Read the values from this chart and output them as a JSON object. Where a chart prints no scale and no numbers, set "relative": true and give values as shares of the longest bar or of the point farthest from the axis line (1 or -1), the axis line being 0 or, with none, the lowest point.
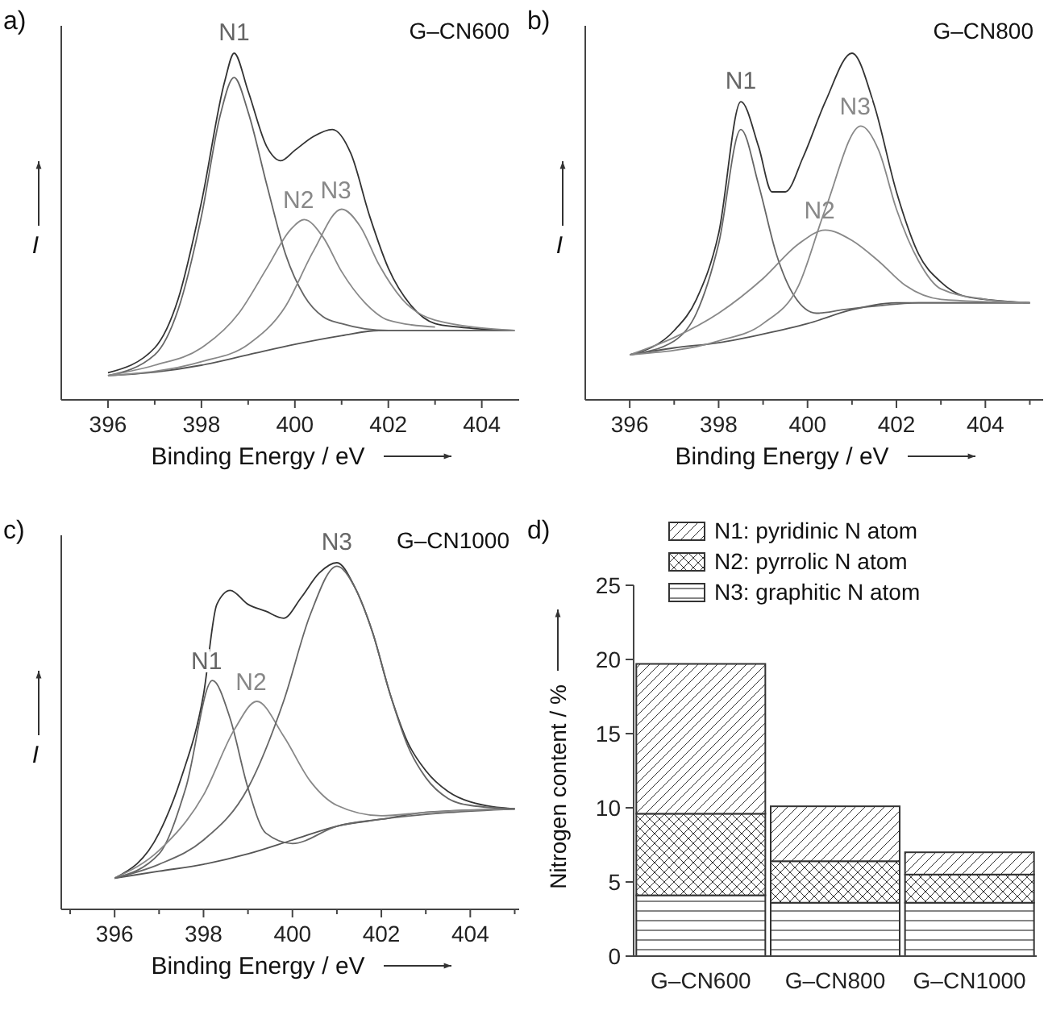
{
  "chart_data": [
    {
      "type": "line",
      "title": "a)",
      "annotations": [
        "G–CN600"
      ],
      "xlabel": "Binding Energy / eV",
      "ylabel": "I",
      "relative": true,
      "xlim": [
        395,
        404.8
      ],
      "xticks": [
        396,
        {
          "value": 397,
          "label": null
        },
        398,
        {
          "value": 399,
          "label": null
        },
        400,
        {
          "value": 401,
          "label": null
        },
        402,
        {
          "value": 403,
          "label": null
        },
        404
      ],
      "series": [
        {
          "color": "#555555",
          "x": [
            396,
            397,
            398,
            399,
            400,
            401,
            401.8,
            404.7
          ],
          "values": [
            0.07,
            0.08,
            0.1,
            0.13,
            0.16,
            0.185,
            0.2,
            0.2
          ]
        },
        {
          "color": "#333333",
          "x": [
            396,
            397,
            397.5,
            398,
            398.5,
            398.7,
            399,
            399.4,
            399.7,
            400,
            400.4,
            400.8,
            401.2,
            401.6,
            402,
            402.5,
            403,
            403.5,
            404.7
          ],
          "values": [
            0.078,
            0.15,
            0.29,
            0.57,
            0.92,
            1.0,
            0.89,
            0.73,
            0.69,
            0.72,
            0.76,
            0.78,
            0.71,
            0.53,
            0.38,
            0.27,
            0.22,
            0.21,
            0.2
          ]
        },
        {
          "name": "N1",
          "color": "#666666",
          "x": [
            396,
            397,
            397.5,
            398,
            398.4,
            398.7,
            399,
            399.4,
            399.8,
            400.2,
            400.6,
            401,
            401.5,
            402,
            404.7
          ],
          "values": [
            0.07,
            0.13,
            0.26,
            0.53,
            0.82,
            0.93,
            0.83,
            0.62,
            0.42,
            0.3,
            0.24,
            0.22,
            0.205,
            0.2,
            0.2
          ]
        },
        {
          "name": "N2",
          "color": "#888888",
          "x": [
            396,
            397,
            398,
            398.8,
            399.4,
            399.9,
            400.2,
            400.6,
            401,
            401.5,
            402,
            403
          ],
          "values": [
            0.07,
            0.1,
            0.15,
            0.25,
            0.38,
            0.49,
            0.52,
            0.47,
            0.37,
            0.28,
            0.23,
            0.21
          ]
        },
        {
          "name": "N3",
          "color": "#888888",
          "x": [
            396,
            398,
            399,
            399.8,
            400.4,
            401,
            401.4,
            401.8,
            402.3,
            403,
            404.7
          ],
          "values": [
            0.07,
            0.11,
            0.16,
            0.27,
            0.43,
            0.55,
            0.5,
            0.39,
            0.29,
            0.23,
            0.2
          ]
        }
      ]
    },
    {
      "type": "line",
      "title": "b)",
      "annotations": [
        "G–CN800"
      ],
      "xlabel": "Binding Energy / eV",
      "ylabel": "I",
      "relative": true,
      "xlim": [
        395,
        405.3
      ],
      "xticks": [
        396,
        {
          "value": 397,
          "label": null
        },
        398,
        {
          "value": 399,
          "label": null
        },
        400,
        {
          "value": 401,
          "label": null
        },
        402,
        {
          "value": 403,
          "label": null
        },
        404,
        {
          "value": 405,
          "label": null
        }
      ],
      "series": [
        {
          "color": "#555555",
          "x": [
            396,
            397,
            398,
            399,
            400,
            401,
            402,
            403,
            405
          ],
          "values": [
            0.13,
            0.15,
            0.165,
            0.19,
            0.22,
            0.26,
            0.28,
            0.28,
            0.28
          ]
        },
        {
          "color": "#333333",
          "x": [
            396,
            397,
            397.5,
            398,
            398.5,
            398.9,
            399.2,
            399.5,
            399.9,
            400.4,
            401,
            401.5,
            402,
            402.5,
            403,
            403.5,
            404,
            405
          ],
          "values": [
            0.13,
            0.2,
            0.29,
            0.48,
            0.86,
            0.73,
            0.6,
            0.6,
            0.7,
            0.86,
            1.0,
            0.85,
            0.6,
            0.42,
            0.34,
            0.3,
            0.29,
            0.28
          ]
        },
        {
          "name": "N1",
          "color": "#666666",
          "x": [
            396,
            397,
            397.5,
            398,
            398.5,
            398.9,
            399.3,
            399.7,
            400.2,
            400.8,
            401.5,
            402.5,
            405
          ],
          "values": [
            0.13,
            0.17,
            0.25,
            0.45,
            0.78,
            0.62,
            0.42,
            0.3,
            0.25,
            0.26,
            0.27,
            0.28,
            0.28
          ]
        },
        {
          "name": "N2",
          "color": "#888888",
          "x": [
            396,
            397,
            398,
            399,
            399.8,
            400.4,
            401,
            401.6,
            402.2,
            403,
            405
          ],
          "values": [
            0.13,
            0.18,
            0.25,
            0.35,
            0.45,
            0.49,
            0.46,
            0.4,
            0.33,
            0.29,
            0.28
          ]
        },
        {
          "name": "N3",
          "color": "#888888",
          "x": [
            396,
            398,
            399,
            399.8,
            400.4,
            401.2,
            401.6,
            402,
            402.5,
            403,
            404,
            405
          ],
          "values": [
            0.13,
            0.17,
            0.22,
            0.33,
            0.55,
            0.79,
            0.72,
            0.55,
            0.4,
            0.32,
            0.29,
            0.28
          ]
        }
      ]
    },
    {
      "type": "line",
      "title": "c)",
      "annotations": [
        "G–CN1000"
      ],
      "xlabel": "Binding Energy / eV",
      "ylabel": "I",
      "relative": true,
      "xlim": [
        394.8,
        405.1
      ],
      "xticks": [
        {
          "value": 395,
          "label": null
        },
        396,
        {
          "value": 397,
          "label": null
        },
        398,
        {
          "value": 399,
          "label": null
        },
        400,
        {
          "value": 401,
          "label": null
        },
        402,
        {
          "value": 403,
          "label": null
        },
        404,
        {
          "value": 405,
          "label": null
        }
      ],
      "series": [
        {
          "color": "#555555",
          "x": [
            396,
            397,
            398,
            399,
            400,
            401,
            402,
            403,
            405
          ],
          "values": [
            0.09,
            0.11,
            0.13,
            0.16,
            0.2,
            0.24,
            0.26,
            0.28,
            0.29
          ]
        },
        {
          "color": "#333333",
          "x": [
            396,
            397,
            397.5,
            398,
            398.3,
            398.6,
            399,
            399.4,
            399.8,
            400.2,
            400.6,
            401,
            401.4,
            401.8,
            402.2,
            402.6,
            403,
            403.5,
            404,
            405
          ],
          "values": [
            0.09,
            0.22,
            0.38,
            0.62,
            0.88,
            0.92,
            0.88,
            0.86,
            0.84,
            0.9,
            0.97,
            1.0,
            0.93,
            0.8,
            0.62,
            0.48,
            0.4,
            0.34,
            0.31,
            0.29
          ]
        },
        {
          "name": "N1",
          "color": "#666666",
          "x": [
            396,
            397,
            397.6,
            398.2,
            398.6,
            399,
            399.4,
            400,
            401,
            402,
            405
          ],
          "values": [
            0.09,
            0.16,
            0.35,
            0.66,
            0.55,
            0.35,
            0.22,
            0.19,
            0.24,
            0.26,
            0.29
          ]
        },
        {
          "name": "N2",
          "color": "#888888",
          "x": [
            396,
            397,
            398,
            398.7,
            399.2,
            399.8,
            400.4,
            401,
            402,
            403,
            405
          ],
          "values": [
            0.09,
            0.17,
            0.33,
            0.52,
            0.6,
            0.5,
            0.37,
            0.3,
            0.27,
            0.28,
            0.29
          ]
        },
        {
          "name": "N3",
          "color": "#666666",
          "x": [
            396,
            397,
            398,
            399,
            399.8,
            400.4,
            401,
            401.4,
            401.8,
            402.2,
            402.6,
            403,
            403.5,
            404,
            405
          ],
          "values": [
            0.09,
            0.13,
            0.2,
            0.35,
            0.6,
            0.85,
            0.99,
            0.93,
            0.8,
            0.62,
            0.47,
            0.38,
            0.32,
            0.3,
            0.29
          ]
        }
      ]
    },
    {
      "type": "bar",
      "stacked": true,
      "title": "d)",
      "ylabel": "Nitrogen content / %",
      "categories": [
        "G–CN600",
        "G–CN800",
        "G–CN1000"
      ],
      "ylim": [
        0,
        25
      ],
      "yticks": [
        0,
        5,
        10,
        15,
        20,
        25
      ],
      "legend": "top",
      "series": [
        {
          "name": "N3: graphitic N atom",
          "color": "#333333",
          "values": [
            4.1,
            3.6,
            3.6
          ]
        },
        {
          "name": "N2: pyrrolic N atom",
          "color": "#333333",
          "values": [
            5.5,
            2.8,
            1.9
          ]
        },
        {
          "name": "N1: pyridinic N atom",
          "color": "#333333",
          "values": [
            10.1,
            3.7,
            1.5
          ]
        }
      ]
    }
  ]
}
